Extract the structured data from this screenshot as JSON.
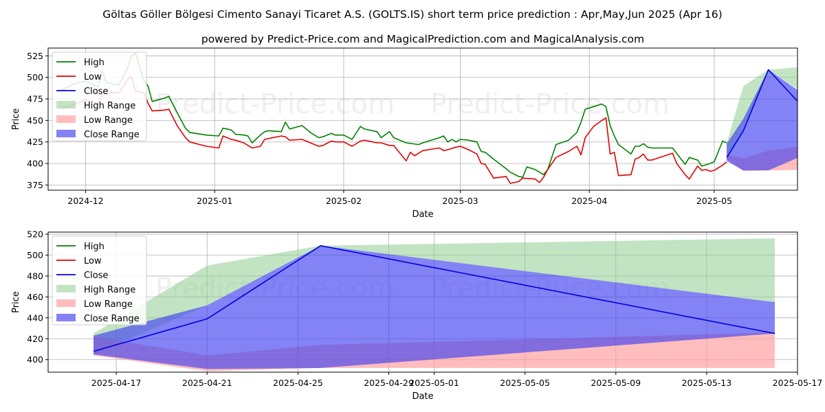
{
  "title": "Göltas Göller Bölgesi Cimento Sanayi Ticaret A.S. (GOLTS.IS) short term price prediction : Apr,May,Jun 2025 (Apr 16)",
  "subtitle": "powered by Predict-Price.com and MagicalPrediction.com and MagicalAnalysis.com",
  "watermark": "Predict-Price.com",
  "colors": {
    "high": "#008000",
    "low": "#e00000",
    "close": "#0000e0",
    "high_range": "#8fce8f",
    "low_range": "#ff9a9a",
    "close_range": "#4040f0"
  },
  "legend": [
    "High",
    "Low",
    "Close",
    "High Range",
    "Low Range",
    "Close Range"
  ],
  "chart_data": [
    {
      "type": "line",
      "xlabel": "Date",
      "ylabel": "Price",
      "ylim": [
        369,
        534
      ],
      "xlim": [
        "2024-11-22",
        "2025-05-21"
      ],
      "yticks": [
        375,
        400,
        425,
        450,
        475,
        500,
        525
      ],
      "xticks": [
        "2024-12",
        "2025-01",
        "2025-02",
        "2025-03",
        "2025-04",
        "2025-05"
      ],
      "grid": true,
      "legend_position": "top-left",
      "high": [
        [
          "2024-11-25",
          485
        ],
        [
          "2024-11-28",
          492
        ],
        [
          "2024-12-01",
          496
        ],
        [
          "2024-12-04",
          489
        ],
        [
          "2024-12-05",
          508
        ],
        [
          "2024-12-06",
          494
        ],
        [
          "2024-12-09",
          491
        ],
        [
          "2024-12-11",
          510
        ],
        [
          "2024-12-12",
          524
        ],
        [
          "2024-12-13",
          528
        ],
        [
          "2024-12-15",
          496
        ],
        [
          "2024-12-16",
          490
        ],
        [
          "2024-12-17",
          472
        ],
        [
          "2024-12-20",
          476
        ],
        [
          "2024-12-21",
          478
        ],
        [
          "2024-12-23",
          459
        ],
        [
          "2024-12-25",
          441
        ],
        [
          "2024-12-26",
          436
        ],
        [
          "2024-12-30",
          433
        ],
        [
          "2025-01-02",
          432
        ],
        [
          "2025-01-03",
          441
        ],
        [
          "2025-01-05",
          439
        ],
        [
          "2025-01-06",
          434
        ],
        [
          "2025-01-08",
          433
        ],
        [
          "2025-01-09",
          432
        ],
        [
          "2025-01-10",
          424
        ],
        [
          "2025-01-12",
          433
        ],
        [
          "2025-01-13",
          437
        ],
        [
          "2025-01-14",
          438
        ],
        [
          "2025-01-17",
          437
        ],
        [
          "2025-01-18",
          448
        ],
        [
          "2025-01-19",
          440
        ],
        [
          "2025-01-22",
          444
        ],
        [
          "2025-01-24",
          436
        ],
        [
          "2025-01-26",
          430
        ],
        [
          "2025-01-27",
          431
        ],
        [
          "2025-01-29",
          435
        ],
        [
          "2025-01-30",
          433
        ],
        [
          "2025-02-01",
          433
        ],
        [
          "2025-02-03",
          428
        ],
        [
          "2025-02-05",
          443
        ],
        [
          "2025-02-06",
          440
        ],
        [
          "2025-02-09",
          437
        ],
        [
          "2025-02-10",
          430
        ],
        [
          "2025-02-12",
          437
        ],
        [
          "2025-02-13",
          430
        ],
        [
          "2025-02-16",
          424
        ],
        [
          "2025-02-19",
          422
        ],
        [
          "2025-02-20",
          424
        ],
        [
          "2025-02-24",
          430
        ],
        [
          "2025-02-25",
          432
        ],
        [
          "2025-02-26",
          425
        ],
        [
          "2025-02-27",
          428
        ],
        [
          "2025-02-28",
          425
        ],
        [
          "2025-03-01",
          428
        ],
        [
          "2025-03-03",
          427
        ],
        [
          "2025-03-05",
          425
        ],
        [
          "2025-03-06",
          414
        ],
        [
          "2025-03-07",
          413
        ],
        [
          "2025-03-09",
          405
        ],
        [
          "2025-03-12",
          394
        ],
        [
          "2025-03-13",
          390
        ],
        [
          "2025-03-15",
          385
        ],
        [
          "2025-03-16",
          384
        ],
        [
          "2025-03-17",
          396
        ],
        [
          "2025-03-19",
          393
        ],
        [
          "2025-03-20",
          390
        ],
        [
          "2025-03-21",
          387
        ],
        [
          "2025-03-22",
          393
        ],
        [
          "2025-03-24",
          422
        ],
        [
          "2025-03-27",
          427
        ],
        [
          "2025-03-29",
          436
        ],
        [
          "2025-03-30",
          448
        ],
        [
          "2025-03-31",
          463
        ],
        [
          "2025-04-02",
          466
        ],
        [
          "2025-04-04",
          469
        ],
        [
          "2025-04-05",
          466
        ],
        [
          "2025-04-06",
          444
        ],
        [
          "2025-04-07",
          432
        ],
        [
          "2025-04-08",
          422
        ],
        [
          "2025-04-11",
          411
        ],
        [
          "2025-04-12",
          420
        ],
        [
          "2025-04-13",
          420
        ],
        [
          "2025-04-14",
          423
        ],
        [
          "2025-04-15",
          419
        ],
        [
          "2025-04-16",
          418
        ],
        [
          "2025-04-21",
          418
        ],
        [
          "2025-04-24",
          399
        ],
        [
          "2025-04-25",
          407
        ],
        [
          "2025-04-27",
          404
        ],
        [
          "2025-04-28",
          397
        ],
        [
          "2025-04-30",
          400
        ],
        [
          "2025-05-01",
          402
        ],
        [
          "2025-05-03",
          426
        ],
        [
          "2025-05-04",
          424
        ]
      ],
      "low": [
        [
          "2024-11-25",
          464
        ],
        [
          "2024-11-28",
          468
        ],
        [
          "2024-12-01",
          474
        ],
        [
          "2024-12-04",
          470
        ],
        [
          "2024-12-05",
          480
        ],
        [
          "2024-12-06",
          482
        ],
        [
          "2024-12-09",
          482
        ],
        [
          "2024-12-11",
          497
        ],
        [
          "2024-12-12",
          501
        ],
        [
          "2024-12-13",
          484
        ],
        [
          "2024-12-15",
          482
        ],
        [
          "2024-12-16",
          470
        ],
        [
          "2024-12-17",
          461
        ],
        [
          "2024-12-20",
          462
        ],
        [
          "2024-12-21",
          463
        ],
        [
          "2024-12-23",
          444
        ],
        [
          "2024-12-25",
          430
        ],
        [
          "2024-12-26",
          425
        ],
        [
          "2024-12-30",
          420
        ],
        [
          "2025-01-02",
          418
        ],
        [
          "2025-01-03",
          432
        ],
        [
          "2025-01-05",
          428
        ],
        [
          "2025-01-06",
          427
        ],
        [
          "2025-01-08",
          424
        ],
        [
          "2025-01-09",
          421
        ],
        [
          "2025-01-10",
          418
        ],
        [
          "2025-01-12",
          420
        ],
        [
          "2025-01-13",
          428
        ],
        [
          "2025-01-14",
          429
        ],
        [
          "2025-01-17",
          432
        ],
        [
          "2025-01-18",
          431
        ],
        [
          "2025-01-19",
          427
        ],
        [
          "2025-01-22",
          428
        ],
        [
          "2025-01-24",
          424
        ],
        [
          "2025-01-26",
          420
        ],
        [
          "2025-01-27",
          421
        ],
        [
          "2025-01-29",
          426
        ],
        [
          "2025-01-30",
          425
        ],
        [
          "2025-02-01",
          425
        ],
        [
          "2025-02-03",
          420
        ],
        [
          "2025-02-05",
          426
        ],
        [
          "2025-02-06",
          427
        ],
        [
          "2025-02-09",
          424
        ],
        [
          "2025-02-10",
          424
        ],
        [
          "2025-02-12",
          421
        ],
        [
          "2025-02-13",
          421
        ],
        [
          "2025-02-16",
          403
        ],
        [
          "2025-02-17",
          413
        ],
        [
          "2025-02-18",
          409
        ],
        [
          "2025-02-20",
          415
        ],
        [
          "2025-02-24",
          418
        ],
        [
          "2025-02-25",
          415
        ],
        [
          "2025-02-26",
          416
        ],
        [
          "2025-02-28",
          419
        ],
        [
          "2025-03-01",
          420
        ],
        [
          "2025-03-03",
          416
        ],
        [
          "2025-03-05",
          411
        ],
        [
          "2025-03-06",
          400
        ],
        [
          "2025-03-07",
          399
        ],
        [
          "2025-03-09",
          383
        ],
        [
          "2025-03-12",
          385
        ],
        [
          "2025-03-13",
          377
        ],
        [
          "2025-03-15",
          379
        ],
        [
          "2025-03-16",
          383
        ],
        [
          "2025-03-19",
          382
        ],
        [
          "2025-03-20",
          378
        ],
        [
          "2025-03-21",
          384
        ],
        [
          "2025-03-22",
          393
        ],
        [
          "2025-03-24",
          407
        ],
        [
          "2025-03-27",
          414
        ],
        [
          "2025-03-29",
          420
        ],
        [
          "2025-03-30",
          410
        ],
        [
          "2025-03-31",
          430
        ],
        [
          "2025-04-02",
          443
        ],
        [
          "2025-04-04",
          450
        ],
        [
          "2025-04-05",
          453
        ],
        [
          "2025-04-06",
          411
        ],
        [
          "2025-04-07",
          413
        ],
        [
          "2025-04-08",
          386
        ],
        [
          "2025-04-11",
          387
        ],
        [
          "2025-04-12",
          405
        ],
        [
          "2025-04-13",
          407
        ],
        [
          "2025-04-14",
          411
        ],
        [
          "2025-04-15",
          404
        ],
        [
          "2025-04-16",
          404
        ],
        [
          "2025-04-21",
          412
        ],
        [
          "2025-04-22",
          400
        ],
        [
          "2025-04-24",
          387
        ],
        [
          "2025-04-25",
          382
        ],
        [
          "2025-04-27",
          397
        ],
        [
          "2025-04-28",
          392
        ],
        [
          "2025-04-29",
          393
        ],
        [
          "2025-04-30",
          391
        ],
        [
          "2025-05-01",
          392
        ],
        [
          "2025-05-03",
          398
        ],
        [
          "2025-05-04",
          402
        ]
      ],
      "forecast_close": [
        [
          "2025-05-04",
          407
        ],
        [
          "2025-05-08",
          438
        ],
        [
          "2025-05-14",
          509
        ],
        [
          "2025-05-30",
          425
        ]
      ],
      "high_range": {
        "dates": [
          "2025-05-04",
          "2025-05-08",
          "2025-05-14",
          "2025-05-30"
        ],
        "upper": [
          424,
          490,
          509,
          515
        ],
        "lower": [
          405,
          437,
          509,
          457
        ]
      },
      "low_range": {
        "dates": [
          "2025-05-04",
          "2025-05-08",
          "2025-05-14",
          "2025-05-30"
        ],
        "upper": [
          410,
          406,
          415,
          425
        ],
        "lower": [
          405,
          391,
          392,
          393
        ]
      },
      "close_range": {
        "dates": [
          "2025-05-04",
          "2025-05-08",
          "2025-05-14",
          "2025-05-30"
        ],
        "upper": [
          423,
          452,
          509,
          455
        ],
        "lower": [
          403,
          392,
          392,
          425
        ]
      }
    },
    {
      "type": "line",
      "xlabel": "Date",
      "ylabel": "Price",
      "ylim": [
        388,
        522
      ],
      "xlim": [
        "2025-04-14",
        "2025-05-17"
      ],
      "yticks": [
        400,
        420,
        440,
        460,
        480,
        500,
        520
      ],
      "xticks": [
        "2025-04-17",
        "2025-04-21",
        "2025-04-25",
        "2025-04-29",
        "2025-05-01",
        "2025-05-05",
        "2025-05-09",
        "2025-05-13",
        "2025-05-17"
      ],
      "grid": true,
      "legend_position": "top-left",
      "forecast_close": [
        [
          "2025-04-16",
          408
        ],
        [
          "2025-04-21",
          439
        ],
        [
          "2025-04-26",
          509
        ],
        [
          "2025-05-16",
          425
        ]
      ],
      "high_range": {
        "dates": [
          "2025-04-16",
          "2025-04-21",
          "2025-04-26",
          "2025-05-16"
        ],
        "upper": [
          425,
          490,
          509,
          516
        ],
        "lower": [
          405,
          452,
          509,
          455
        ]
      },
      "low_range": {
        "dates": [
          "2025-04-16",
          "2025-04-21",
          "2025-04-26",
          "2025-05-16"
        ],
        "upper": [
          422,
          404,
          414,
          426
        ],
        "lower": [
          404,
          389,
          392,
          392
        ]
      },
      "close_range": {
        "dates": [
          "2025-04-16",
          "2025-04-21",
          "2025-04-26",
          "2025-05-16"
        ],
        "upper": [
          423,
          452,
          509,
          455
        ],
        "lower": [
          405,
          391,
          392,
          425
        ]
      }
    }
  ]
}
